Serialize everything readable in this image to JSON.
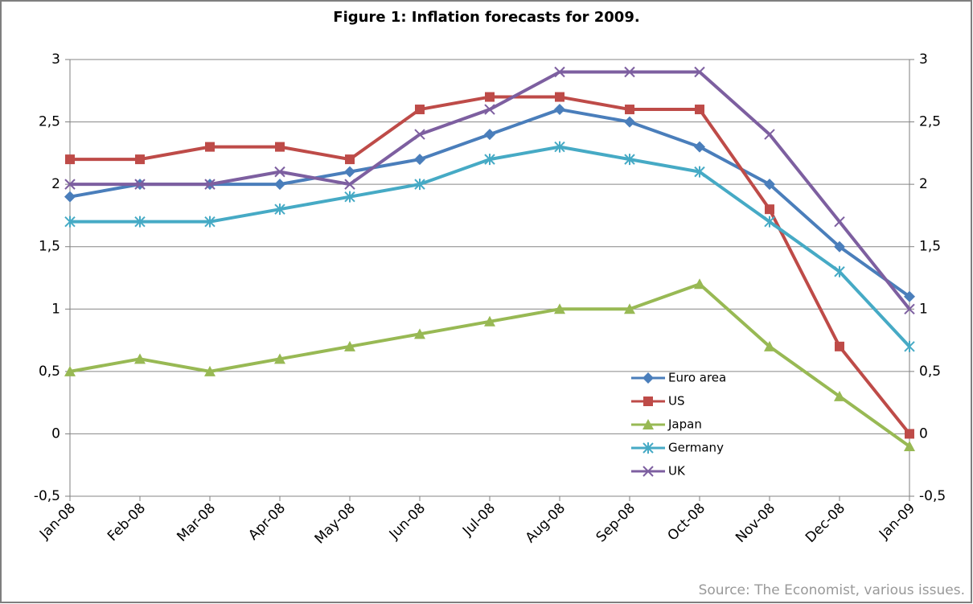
{
  "chart_data": {
    "type": "line",
    "title": "Figure 1: Inflation forecasts for 2009.",
    "source": "Source: The Economist, various issues.",
    "categories": [
      "Jan-08",
      "Feb-08",
      "Mar-08",
      "Apr-08",
      "May-08",
      "Jun-08",
      "Jul-08",
      "Aug-08",
      "Sep-08",
      "Oct-08",
      "Nov-08",
      "Dec-08",
      "Jan-09"
    ],
    "series": [
      {
        "name": "Euro area",
        "color": "#4a7ebb",
        "marker": "diamond",
        "values": [
          1.9,
          2.0,
          2.0,
          2.0,
          2.1,
          2.2,
          2.4,
          2.6,
          2.5,
          2.3,
          2.0,
          1.5,
          1.1
        ]
      },
      {
        "name": "US",
        "color": "#be4b48",
        "marker": "square",
        "values": [
          2.2,
          2.2,
          2.3,
          2.3,
          2.2,
          2.6,
          2.7,
          2.7,
          2.6,
          2.6,
          1.8,
          0.7,
          0.0
        ]
      },
      {
        "name": "Japan",
        "color": "#98b954",
        "marker": "triangle",
        "values": [
          0.5,
          0.6,
          0.5,
          0.6,
          0.7,
          0.8,
          0.9,
          1.0,
          1.0,
          1.2,
          0.7,
          0.3,
          -0.1
        ]
      },
      {
        "name": "Germany",
        "color": "#46aac5",
        "marker": "star",
        "values": [
          1.7,
          1.7,
          1.7,
          1.8,
          1.9,
          2.0,
          2.2,
          2.3,
          2.2,
          2.1,
          1.7,
          1.3,
          0.7
        ]
      },
      {
        "name": "UK",
        "color": "#7d5fa0",
        "marker": "x",
        "values": [
          2.0,
          2.0,
          2.0,
          2.1,
          2.0,
          2.4,
          2.6,
          2.9,
          2.9,
          2.9,
          2.4,
          1.7,
          1.0
        ]
      }
    ],
    "ylim": [
      -0.5,
      3
    ],
    "yticks": [
      {
        "value": -0.5,
        "label": "-0,5"
      },
      0,
      {
        "value": 0.5,
        "label": "0,5"
      },
      1,
      {
        "value": 1.5,
        "label": "1,5"
      },
      2,
      {
        "value": 2.5,
        "label": "2,5"
      },
      3
    ],
    "y2lim": [
      -0.5,
      3
    ],
    "y2ticks": [
      {
        "value": -0.5,
        "label": "-0,5"
      },
      0,
      {
        "value": 0.5,
        "label": "0,5"
      },
      1,
      {
        "value": 1.5,
        "label": "1,5"
      },
      2,
      {
        "value": 2.5,
        "label": "2,5"
      },
      3
    ],
    "grid": true
  }
}
